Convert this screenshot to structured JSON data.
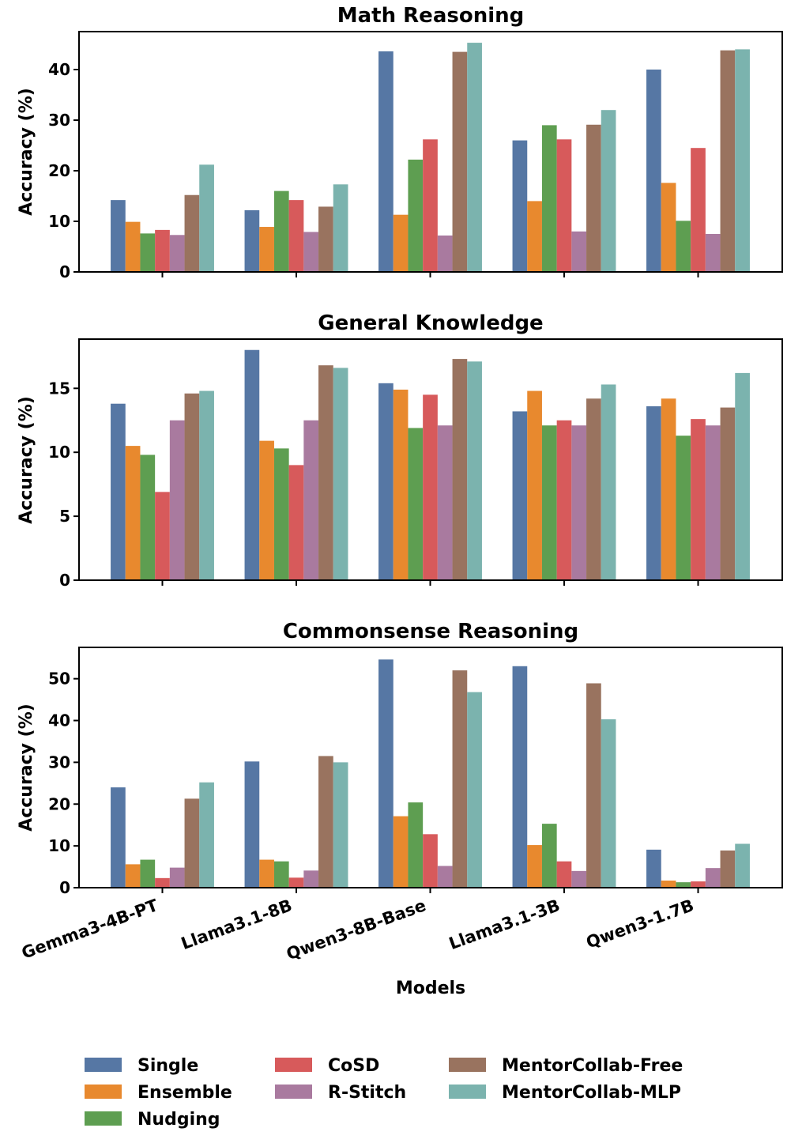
{
  "chart_data": [
    {
      "type": "bar",
      "title": "Math Reasoning",
      "ylabel": "Accuracy (%)",
      "xlabel": "",
      "ylim": [
        0,
        47.5
      ],
      "yticks": [
        0,
        10,
        20,
        30,
        40
      ],
      "show_xticklabels": false,
      "categories": [
        "Gemma3-4B-PT",
        "Llama3.1-8B",
        "Qwen3-8B-Base",
        "Llama3.1-3B",
        "Qwen3-1.7B"
      ],
      "series": [
        {
          "name": "Single",
          "values": [
            14.2,
            12.2,
            43.6,
            26.0,
            40.0
          ]
        },
        {
          "name": "Ensemble",
          "values": [
            9.9,
            8.9,
            11.3,
            14.0,
            17.6
          ]
        },
        {
          "name": "Nudging",
          "values": [
            7.6,
            16.0,
            22.2,
            29.0,
            10.1
          ]
        },
        {
          "name": "CoSD",
          "values": [
            8.3,
            14.2,
            26.2,
            26.2,
            24.5
          ]
        },
        {
          "name": "R-Stitch",
          "values": [
            7.3,
            7.9,
            7.2,
            8.0,
            7.5
          ]
        },
        {
          "name": "MentorCollab-Free",
          "values": [
            15.2,
            12.9,
            43.5,
            29.1,
            43.8
          ]
        },
        {
          "name": "MentorCollab-MLP",
          "values": [
            21.2,
            17.3,
            45.3,
            32.0,
            44.0
          ]
        }
      ]
    },
    {
      "type": "bar",
      "title": "General Knowledge",
      "ylabel": "Accuracy (%)",
      "xlabel": "",
      "ylim": [
        0,
        18.85
      ],
      "yticks": [
        0,
        5,
        10,
        15
      ],
      "show_xticklabels": false,
      "categories": [
        "Gemma3-4B-PT",
        "Llama3.1-8B",
        "Qwen3-8B-Base",
        "Llama3.1-3B",
        "Qwen3-1.7B"
      ],
      "series": [
        {
          "name": "Single",
          "values": [
            13.8,
            18.0,
            15.4,
            13.2,
            13.6
          ]
        },
        {
          "name": "Ensemble",
          "values": [
            10.5,
            10.9,
            14.9,
            14.8,
            14.2
          ]
        },
        {
          "name": "Nudging",
          "values": [
            9.8,
            10.3,
            11.9,
            12.1,
            11.3
          ]
        },
        {
          "name": "CoSD",
          "values": [
            6.9,
            9.0,
            14.5,
            12.5,
            12.6
          ]
        },
        {
          "name": "R-Stitch",
          "values": [
            12.5,
            12.5,
            12.1,
            12.1,
            12.1
          ]
        },
        {
          "name": "MentorCollab-Free",
          "values": [
            14.6,
            16.8,
            17.3,
            14.2,
            13.5
          ]
        },
        {
          "name": "MentorCollab-MLP",
          "values": [
            14.8,
            16.6,
            17.1,
            15.3,
            16.2
          ]
        }
      ]
    },
    {
      "type": "bar",
      "title": "Commonsense Reasoning",
      "ylabel": "Accuracy (%)",
      "xlabel": "Models",
      "ylim": [
        0,
        57.5
      ],
      "yticks": [
        0,
        10,
        20,
        30,
        40,
        50
      ],
      "show_xticklabels": true,
      "categories": [
        "Gemma3-4B-PT",
        "Llama3.1-8B",
        "Qwen3-8B-Base",
        "Llama3.1-3B",
        "Qwen3-1.7B"
      ],
      "series": [
        {
          "name": "Single",
          "values": [
            24.0,
            30.2,
            54.6,
            53.0,
            9.1
          ]
        },
        {
          "name": "Ensemble",
          "values": [
            5.6,
            6.7,
            17.1,
            10.2,
            1.7
          ]
        },
        {
          "name": "Nudging",
          "values": [
            6.7,
            6.3,
            20.4,
            15.3,
            1.3
          ]
        },
        {
          "name": "CoSD",
          "values": [
            2.3,
            2.4,
            12.8,
            6.3,
            1.5
          ]
        },
        {
          "name": "R-Stitch",
          "values": [
            4.8,
            4.1,
            5.2,
            4.0,
            4.7
          ]
        },
        {
          "name": "MentorCollab-Free",
          "values": [
            21.3,
            31.5,
            52.0,
            48.9,
            8.9
          ]
        },
        {
          "name": "MentorCollab-MLP",
          "values": [
            25.2,
            30.0,
            46.8,
            40.3,
            10.5
          ]
        }
      ]
    }
  ],
  "legend": {
    "placement": "bottom",
    "entries": [
      "Single",
      "Ensemble",
      "Nudging",
      "CoSD",
      "R-Stitch",
      "MentorCollab-Free",
      "MentorCollab-MLP"
    ]
  },
  "colors": {
    "Single": "#5677a4",
    "Ensemble": "#e8892e",
    "Nudging": "#5e9e51",
    "CoSD": "#d75a5b",
    "R-Stitch": "#a97a9f",
    "MentorCollab-Free": "#99735f",
    "MentorCollab-MLP": "#7bb3ae"
  }
}
